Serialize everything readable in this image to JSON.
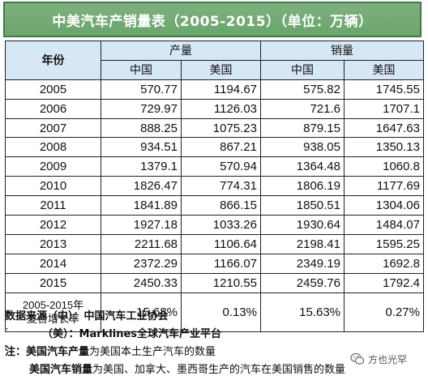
{
  "title": "中美汽车产销量表（2005-2015）（单位：万辆）",
  "header": {
    "year": "年份",
    "production": "产量",
    "sales": "销量",
    "china": "中国",
    "usa": "美国"
  },
  "rows": [
    {
      "year": "2005",
      "prod_cn": "570.77",
      "prod_us": "1194.67",
      "sales_cn": "575.82",
      "sales_us": "1745.55"
    },
    {
      "year": "2006",
      "prod_cn": "729.97",
      "prod_us": "1126.03",
      "sales_cn": "721.6",
      "sales_us": "1707.1"
    },
    {
      "year": "2007",
      "prod_cn": "888.25",
      "prod_us": "1075.23",
      "sales_cn": "879.15",
      "sales_us": "1647.63"
    },
    {
      "year": "2008",
      "prod_cn": "934.51",
      "prod_us": "867.21",
      "sales_cn": "938.05",
      "sales_us": "1350.13"
    },
    {
      "year": "2009",
      "prod_cn": "1379.1",
      "prod_us": "570.94",
      "sales_cn": "1364.48",
      "sales_us": "1060.8"
    },
    {
      "year": "2010",
      "prod_cn": "1826.47",
      "prod_us": "774.31",
      "sales_cn": "1806.19",
      "sales_us": "1177.69"
    },
    {
      "year": "2011",
      "prod_cn": "1841.89",
      "prod_us": "866.15",
      "sales_cn": "1850.51",
      "sales_us": "1304.06"
    },
    {
      "year": "2012",
      "prod_cn": "1927.18",
      "prod_us": "1033.26",
      "sales_cn": "1930.64",
      "sales_us": "1484.07"
    },
    {
      "year": "2013",
      "prod_cn": "2211.68",
      "prod_us": "1106.64",
      "sales_cn": "2198.41",
      "sales_us": "1595.25"
    },
    {
      "year": "2014",
      "prod_cn": "2372.29",
      "prod_us": "1166.07",
      "sales_cn": "2349.19",
      "sales_us": "1692.8"
    },
    {
      "year": "2015",
      "prod_cn": "2450.33",
      "prod_us": "1210.55",
      "sales_cn": "2459.76",
      "sales_us": "1792.4"
    }
  ],
  "cagr": {
    "label_line1": "2005-2015年",
    "label_line2": "复合增长率",
    "prod_cn": "15.68%",
    "prod_us": "0.13%",
    "sales_cn": "15.63%",
    "sales_us": "0.27%"
  },
  "notes": {
    "source_prefix": "数据来源（中）：",
    "source_cn": "中国汽车工业协会",
    "source_us_prefix": "（美）：",
    "source_us": "Marklines全球汽车产业平台",
    "note_prefix": "注：",
    "note1_bold": "美国汽车产量",
    "note1_rest": "为美国本土生产汽车的数量",
    "note2_bold": "美国汽车销量",
    "note2_rest": "为美国、加拿大、墨西哥生产的汽车在美国销售的数量"
  },
  "watermark": {
    "text": "方也光罕",
    "icon": "wechat-logo-icon"
  },
  "colors": {
    "title_bg": "#6aa56b",
    "title_border": "#3d7a45",
    "header_bg": "#d6e7f6"
  }
}
